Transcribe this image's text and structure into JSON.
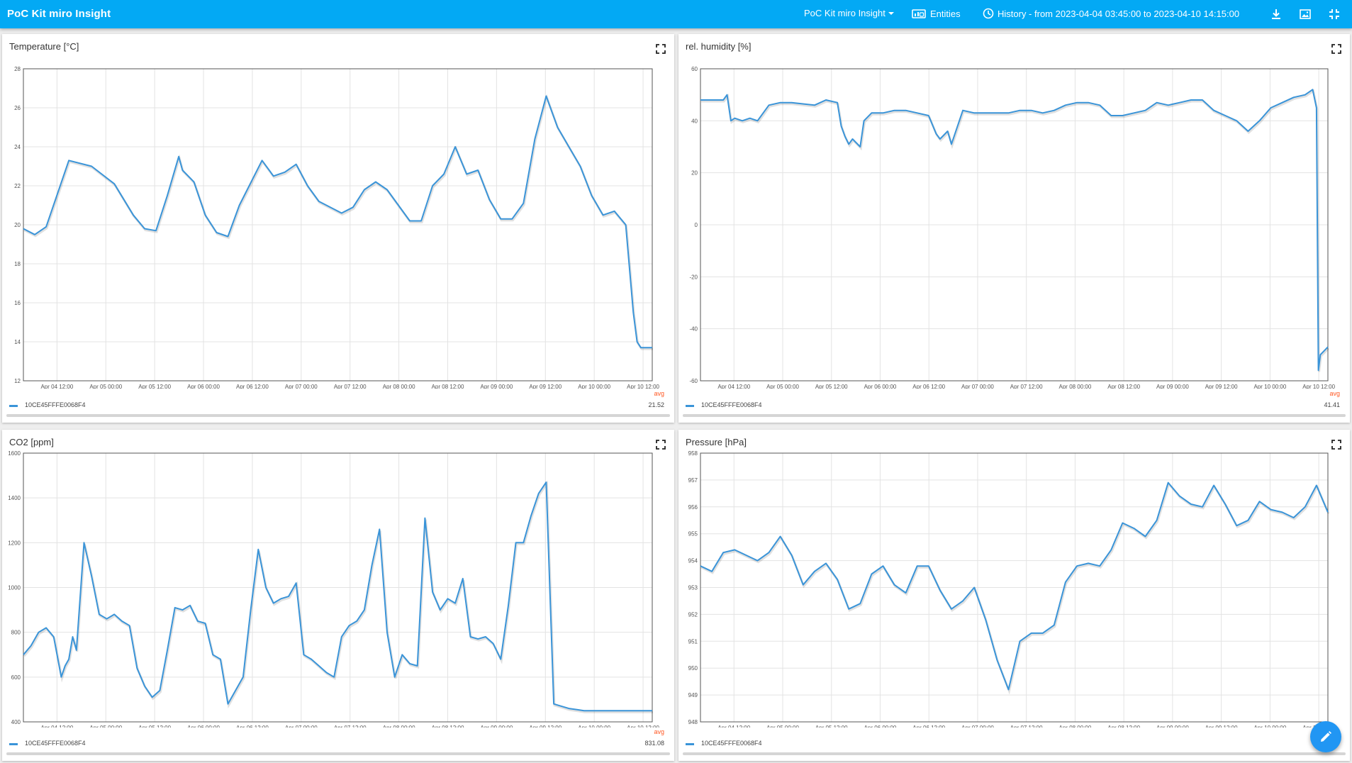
{
  "app": {
    "title": "PoC Kit miro Insight"
  },
  "toolbar": {
    "dashboard_select": "PoC Kit miro Insight",
    "entities_label": "Entities",
    "history_label": "History - from 2023-04-04 03:45:00 to 2023-04-10 14:15:00",
    "icons": [
      "dropdown-arrow-icon",
      "entities-icon",
      "clock-icon",
      "download-icon",
      "image-export-icon",
      "exit-fullscreen-icon"
    ]
  },
  "colors": {
    "toolbar": "#03a9f4",
    "series": "#3a94d8",
    "avg_header": "#ff5722",
    "fab": "#2196f3"
  },
  "x_ticks": [
    "Apr 04 12:00",
    "Apr 05 00:00",
    "Apr 05 12:00",
    "Apr 06 00:00",
    "Apr 06 12:00",
    "Apr 07 00:00",
    "Apr 07 12:00",
    "Apr 08 00:00",
    "Apr 08 12:00",
    "Apr 09 00:00",
    "Apr 09 12:00",
    "Apr 10 00:00",
    "Apr 10 12:00"
  ],
  "panels": [
    {
      "title": "Temperature [°C]",
      "legend": {
        "avg_header": "avg",
        "series_name": "10CE45FFFE0068F4",
        "avg_value": "21.52"
      }
    },
    {
      "title": "rel. humidity [%]",
      "legend": {
        "avg_header": "avg",
        "series_name": "10CE45FFFE0068F4",
        "avg_value": "41.41"
      }
    },
    {
      "title": "CO2 [ppm]",
      "legend": {
        "avg_header": "avg",
        "series_name": "10CE45FFFE0068F4",
        "avg_value": "831.08"
      }
    },
    {
      "title": "Pressure [hPa]",
      "legend": {
        "avg_header": "avg",
        "series_name": "10CE45FFFE0068F4",
        "avg_value": ""
      }
    }
  ],
  "chart_data": [
    {
      "type": "line",
      "title": "Temperature [°C]",
      "ylim": [
        12,
        28
      ],
      "yticks": [
        12,
        14,
        16,
        18,
        20,
        22,
        24,
        26,
        28
      ],
      "grid": true,
      "legend": "bottom",
      "series": [
        {
          "name": "10CE45FFFE0068F4",
          "x": [
            0,
            3,
            6,
            12,
            18,
            24,
            29,
            32,
            35,
            38,
            41,
            42,
            45,
            48,
            51,
            54,
            57,
            63,
            66,
            69,
            72,
            75,
            78,
            84,
            87,
            90,
            93,
            96,
            99,
            102,
            105,
            108,
            111,
            114,
            117,
            120,
            123,
            126,
            129,
            132,
            135,
            138,
            141,
            144,
            147,
            150,
            153,
            156,
            159,
            161,
            162,
            163,
            164,
            166
          ],
          "values": [
            19.8,
            19.5,
            19.9,
            23.3,
            23.0,
            22.1,
            20.5,
            19.8,
            19.7,
            21.5,
            23.5,
            22.8,
            22.2,
            20.5,
            19.6,
            19.4,
            21.0,
            23.3,
            22.5,
            22.7,
            23.1,
            22.0,
            21.2,
            20.6,
            20.9,
            21.8,
            22.2,
            21.8,
            21.0,
            20.2,
            20.2,
            22.0,
            22.6,
            24.0,
            22.6,
            22.8,
            21.3,
            20.3,
            20.3,
            21.1,
            24.4,
            26.6,
            25.0,
            24.0,
            23.0,
            21.5,
            20.5,
            20.7,
            20.0,
            15.5,
            14.0,
            13.7,
            13.7,
            13.7
          ]
        }
      ]
    },
    {
      "type": "line",
      "title": "rel. humidity [%]",
      "ylim": [
        -60,
        60
      ],
      "yticks": [
        -60,
        -40,
        -20,
        0,
        20,
        40,
        60
      ],
      "grid": true,
      "legend": "bottom",
      "series": [
        {
          "name": "10CE45FFFE0068F4",
          "x": [
            0,
            3,
            6,
            7,
            8,
            9,
            11,
            13,
            15,
            18,
            21,
            24,
            30,
            33,
            36,
            37,
            38,
            39,
            40,
            42,
            43,
            45,
            48,
            51,
            54,
            57,
            60,
            62,
            63,
            65,
            66,
            69,
            72,
            75,
            78,
            81,
            84,
            87,
            90,
            93,
            96,
            99,
            102,
            105,
            108,
            111,
            114,
            117,
            120,
            123,
            126,
            129,
            132,
            135,
            138,
            141,
            144,
            147,
            150,
            153,
            156,
            159,
            161,
            162,
            162.5,
            163,
            165
          ],
          "values": [
            48,
            48,
            48,
            50,
            40,
            41,
            40,
            41,
            40,
            46,
            47,
            47,
            46,
            48,
            47,
            38,
            34,
            31,
            33,
            30,
            40,
            43,
            43,
            44,
            44,
            43,
            42,
            35,
            33,
            36,
            31,
            44,
            43,
            43,
            43,
            43,
            44,
            44,
            43,
            44,
            46,
            47,
            47,
            46,
            42,
            42,
            43,
            44,
            47,
            46,
            47,
            48,
            48,
            44,
            42,
            40,
            36,
            40,
            45,
            47,
            49,
            50,
            52,
            45,
            -56,
            -50,
            -47
          ]
        }
      ]
    },
    {
      "type": "line",
      "title": "CO2 [ppm]",
      "ylim": [
        400,
        1600
      ],
      "yticks": [
        400,
        600,
        800,
        1000,
        1200,
        1400,
        1600
      ],
      "grid": true,
      "legend": "bottom",
      "series": [
        {
          "name": "10CE45FFFE0068F4",
          "x": [
            0,
            2,
            4,
            6,
            8,
            10,
            11,
            12,
            13,
            14,
            16,
            18,
            20,
            22,
            24,
            26,
            28,
            30,
            32,
            34,
            36,
            38,
            40,
            42,
            44,
            46,
            48,
            50,
            52,
            54,
            56,
            58,
            60,
            62,
            64,
            66,
            68,
            70,
            72,
            74,
            76,
            78,
            80,
            82,
            84,
            86,
            88,
            90,
            92,
            94,
            96,
            98,
            100,
            102,
            104,
            106,
            108,
            110,
            112,
            114,
            116,
            118,
            120,
            122,
            124,
            126,
            128,
            130,
            132,
            134,
            136,
            138,
            140,
            142,
            144,
            146,
            148,
            150,
            152,
            154,
            156,
            157,
            158,
            160,
            162,
            164,
            166
          ],
          "values": [
            700,
            740,
            800,
            820,
            780,
            600,
            650,
            680,
            780,
            720,
            1200,
            1050,
            880,
            860,
            880,
            850,
            830,
            640,
            560,
            510,
            540,
            720,
            910,
            900,
            920,
            850,
            840,
            700,
            680,
            480,
            540,
            600,
            900,
            1170,
            1000,
            930,
            950,
            960,
            1020,
            700,
            680,
            650,
            620,
            600,
            780,
            830,
            850,
            900,
            1100,
            1260,
            800,
            600,
            700,
            660,
            650,
            1310,
            980,
            900,
            950,
            930,
            1040,
            780,
            770,
            780,
            750,
            680,
            920,
            1200,
            1200,
            1320,
            1420,
            1470,
            480,
            470,
            460,
            455,
            450,
            450,
            450,
            450,
            450,
            450,
            450,
            450,
            450,
            450,
            450
          ]
        }
      ]
    },
    {
      "type": "line",
      "title": "Pressure [hPa]",
      "ylim": [
        948,
        958
      ],
      "yticks": [
        948,
        949,
        950,
        951,
        952,
        953,
        954,
        955,
        956,
        957,
        958
      ],
      "grid": true,
      "legend": "bottom",
      "series": [
        {
          "name": "10CE45FFFE0068F4",
          "x": [
            0,
            3,
            6,
            9,
            12,
            15,
            18,
            21,
            24,
            27,
            30,
            33,
            36,
            39,
            42,
            45,
            48,
            51,
            54,
            57,
            60,
            63,
            66,
            69,
            72,
            75,
            78,
            81,
            84,
            87,
            90,
            93,
            96,
            99,
            102,
            105,
            108,
            111,
            114,
            117,
            120,
            123,
            126,
            129,
            132,
            135,
            138,
            141,
            144,
            147,
            150,
            153,
            156,
            159,
            162,
            165
          ],
          "values": [
            953.8,
            953.6,
            954.3,
            954.4,
            954.2,
            954.0,
            954.3,
            954.9,
            954.2,
            953.1,
            953.6,
            953.9,
            953.3,
            952.2,
            952.4,
            953.5,
            953.8,
            953.1,
            952.8,
            953.8,
            953.8,
            952.9,
            952.2,
            952.5,
            953.0,
            951.8,
            950.3,
            949.2,
            951.0,
            951.3,
            951.3,
            951.6,
            953.2,
            953.8,
            953.9,
            953.8,
            954.4,
            955.4,
            955.2,
            954.9,
            955.5,
            956.9,
            956.4,
            956.1,
            956.0,
            956.8,
            956.1,
            955.3,
            955.5,
            956.2,
            955.9,
            955.8,
            955.6,
            956.0,
            956.8,
            955.8
          ]
        }
      ]
    }
  ]
}
